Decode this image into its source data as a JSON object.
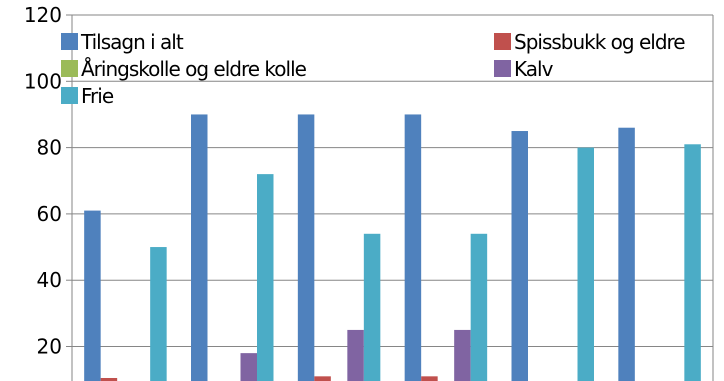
{
  "chart_data": {
    "type": "bar",
    "title": "",
    "xlabel": "",
    "ylabel": "",
    "ylim": [
      10,
      120
    ],
    "yticks": [
      20,
      40,
      60,
      80,
      100,
      120
    ],
    "grid": "horizontal",
    "legend_position": "top",
    "groups": 6,
    "series": [
      {
        "name": "Tilsagn i alt",
        "color": "#4F81BD",
        "values": [
          61,
          90,
          90,
          90,
          85,
          86
        ]
      },
      {
        "name": "Spissbukk og eldre",
        "color": "#C0504D",
        "values": [
          10.5,
          0,
          11,
          11,
          0,
          0
        ]
      },
      {
        "name": "Åringskolle og eldre kolle",
        "color": "#9BBB59",
        "values": [
          0,
          0,
          0,
          0,
          0,
          0
        ]
      },
      {
        "name": "Kalv",
        "color": "#8064A2",
        "values": [
          0,
          18,
          25,
          25,
          0,
          0
        ]
      },
      {
        "name": "Frie",
        "color": "#4BACC6",
        "values": [
          50,
          72,
          54,
          54,
          80,
          81
        ]
      }
    ]
  }
}
